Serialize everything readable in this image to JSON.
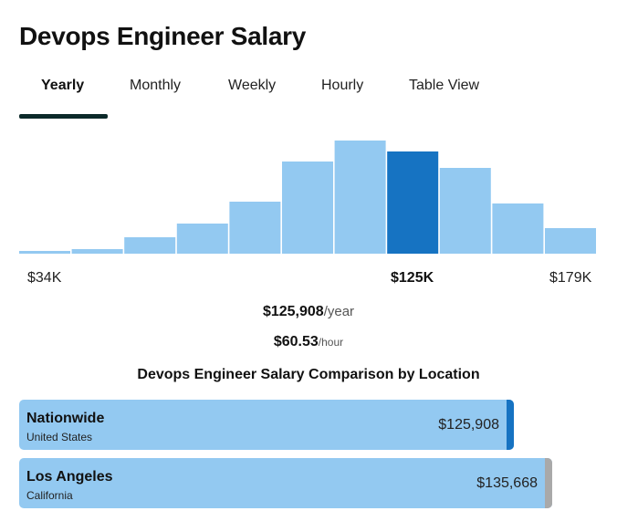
{
  "page": {
    "title": "Devops Engineer Salary"
  },
  "tabs": [
    {
      "label": "Yearly",
      "active": true
    },
    {
      "label": "Monthly",
      "active": false
    },
    {
      "label": "Weekly",
      "active": false
    },
    {
      "label": "Hourly",
      "active": false
    },
    {
      "label": "Table View",
      "active": false
    }
  ],
  "colors": {
    "bar": "#93c9f1",
    "bar_highlight": "#1673c2",
    "tab_underline": "#0c2a2a",
    "nationwide_edge": "#1673c2",
    "la_edge": "#a9a9a9"
  },
  "chart_data": {
    "type": "bar",
    "title": "",
    "xlabel": "",
    "ylabel": "",
    "x_range_labels": {
      "min": "$34K",
      "median": "$125K",
      "max": "$179K"
    },
    "values": [
      3,
      5,
      18,
      33,
      57,
      101,
      124,
      112,
      94,
      55,
      28
    ],
    "highlight_index": 7,
    "ylim": [
      0,
      124
    ]
  },
  "summary": {
    "yearly_amount": "$125,908",
    "yearly_unit": "/year",
    "hourly_amount": "$60.53",
    "hourly_unit": "/hour"
  },
  "comparison": {
    "title": "Devops Engineer Salary Comparison by Location",
    "items": [
      {
        "name": "Nationwide",
        "sub": "United States",
        "value": "$125,908",
        "amount": 125908
      },
      {
        "name": "Los Angeles",
        "sub": "California",
        "value": "$135,668",
        "amount": 135668
      }
    ]
  }
}
